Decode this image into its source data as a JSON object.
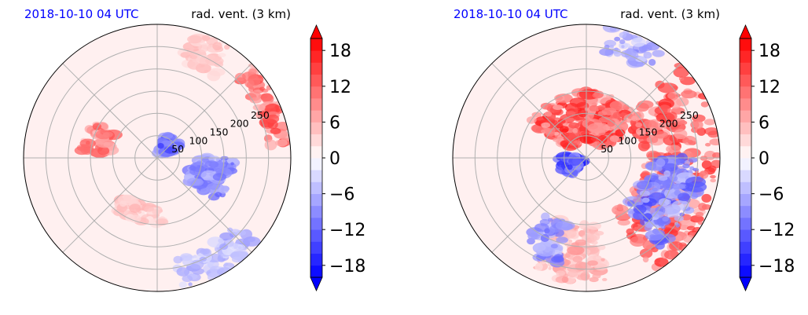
{
  "chart_data": [
    {
      "type": "heatmap",
      "projection": "polar",
      "title_left": "2018-10-10 04 UTC",
      "title_right": "rad. vent. (3 km)",
      "title_left_color": "#0000ff",
      "radial_ticks": [
        50,
        100,
        150,
        200,
        250
      ],
      "rlim": [
        0,
        300
      ],
      "angular_gridlines_deg": [
        0,
        45,
        90,
        135,
        180,
        225,
        270,
        315
      ],
      "grid": true,
      "colormap": "bwr",
      "colorbar": {
        "ticks": [
          -18,
          -12,
          -6,
          0,
          6,
          12,
          18
        ],
        "tick_labels": [
          "−18",
          "−12",
          "−6",
          "0",
          "6",
          "12",
          "18"
        ],
        "range": [
          -20,
          20
        ],
        "levels": 20,
        "extend": "both"
      },
      "features": [
        {
          "kind": "positive-band",
          "r": [
            110,
            170
          ],
          "theta": [
            150,
            175
          ],
          "value": 14
        },
        {
          "kind": "negative-cluster",
          "r": [
            15,
            60
          ],
          "theta": [
            20,
            75
          ],
          "value": -16
        },
        {
          "kind": "negative-cluster",
          "r": [
            80,
            170
          ],
          "theta": [
            -35,
            0
          ],
          "value": -12
        },
        {
          "kind": "positive-band",
          "r": [
            250,
            300
          ],
          "theta": [
            5,
            45
          ],
          "value": 16
        },
        {
          "kind": "positive-band",
          "r": [
            110,
            150
          ],
          "theta": [
            -130,
            -85
          ],
          "value": 6
        },
        {
          "kind": "positive-band",
          "r": [
            220,
            300
          ],
          "theta": [
            55,
            75
          ],
          "value": 6
        },
        {
          "kind": "negative-cluster",
          "r": [
            230,
            300
          ],
          "theta": [
            -80,
            -40
          ],
          "value": -8
        }
      ]
    },
    {
      "type": "heatmap",
      "projection": "polar",
      "title_left": "2018-10-10 04 UTC",
      "title_right": "rad. vent. (3 km)",
      "title_left_color": "#0000ff",
      "radial_ticks": [
        50,
        100,
        150,
        200,
        250
      ],
      "rlim": [
        0,
        300
      ],
      "angular_gridlines_deg": [
        0,
        45,
        90,
        135,
        180,
        225,
        270,
        315
      ],
      "grid": true,
      "colormap": "bwr",
      "colorbar": {
        "ticks": [
          -18,
          -12,
          -6,
          0,
          6,
          12,
          18
        ],
        "tick_labels": [
          "−18",
          "−12",
          "−6",
          "0",
          "6",
          "12",
          "18"
        ],
        "range": [
          -20,
          20
        ],
        "levels": 20,
        "extend": "both"
      },
      "features": [
        {
          "kind": "positive-spiral-band",
          "r": [
            40,
            150
          ],
          "theta": [
            30,
            150
          ],
          "value": 18
        },
        {
          "kind": "positive-spiral-band",
          "r": [
            130,
            300
          ],
          "theta": [
            -60,
            45
          ],
          "value": 18
        },
        {
          "kind": "negative-cluster",
          "r": [
            10,
            60
          ],
          "theta": [
            175,
            230
          ],
          "value": -18
        },
        {
          "kind": "negative-spiral-band",
          "r": [
            140,
            260
          ],
          "theta": [
            -50,
            0
          ],
          "value": -14
        },
        {
          "kind": "positive-band",
          "r": [
            150,
            280
          ],
          "theta": [
            -115,
            -80
          ],
          "value": 8
        },
        {
          "kind": "negative-cluster",
          "r": [
            150,
            250
          ],
          "theta": [
            -125,
            -105
          ],
          "value": -12
        },
        {
          "kind": "negative-cluster",
          "r": [
            240,
            300
          ],
          "theta": [
            55,
            80
          ],
          "value": -10
        }
      ]
    }
  ]
}
